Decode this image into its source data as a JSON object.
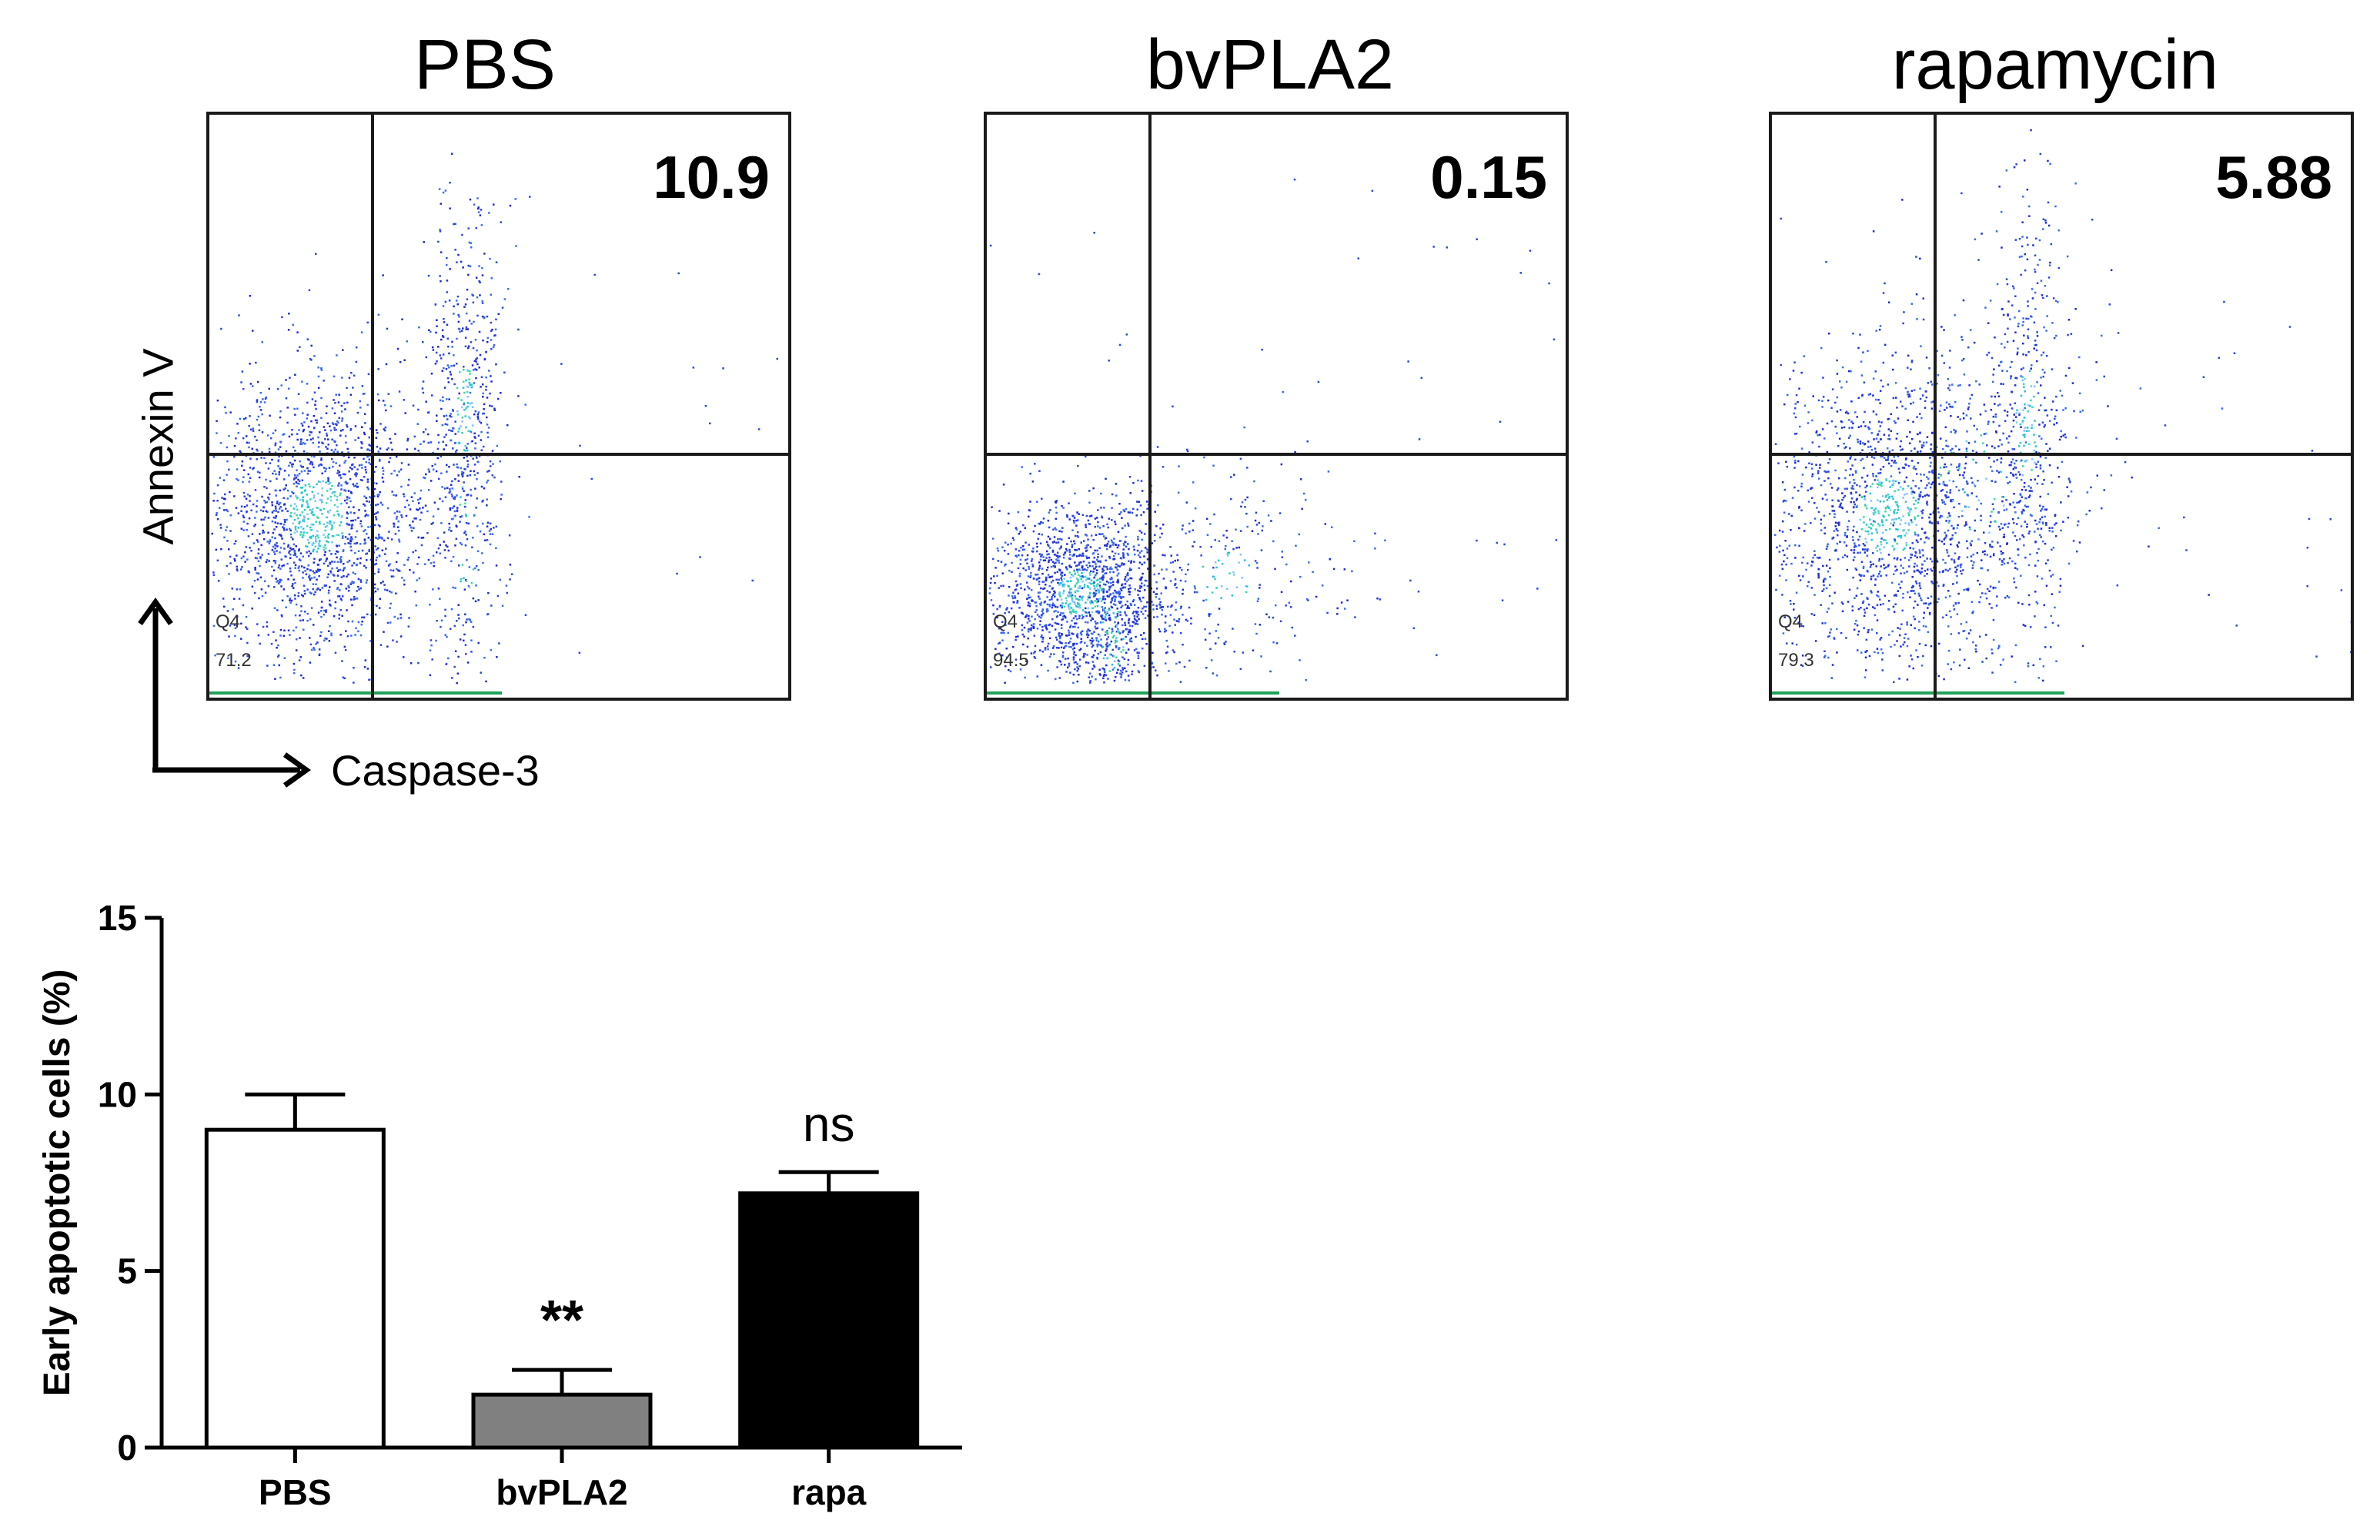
{
  "flow_panels": [
    {
      "title": "PBS",
      "upper_right_pct": "10.9",
      "q4_label": "Q4",
      "q4_value": "71.2"
    },
    {
      "title": "bvPLA2",
      "upper_right_pct": "0.15",
      "q4_label": "Q4",
      "q4_value": "94.5"
    },
    {
      "title": "rapamycin",
      "upper_right_pct": "5.88",
      "q4_label": "Q4",
      "q4_value": "79.3"
    }
  ],
  "axes_legend": {
    "y_label": "Annexin V",
    "x_label": "Caspase-3"
  },
  "chart_data": {
    "type": "bar",
    "categories": [
      "PBS",
      "bvPLA2",
      "rapa"
    ],
    "values": [
      9.0,
      1.5,
      7.2
    ],
    "errors": [
      1.0,
      0.7,
      0.6
    ],
    "bar_colors": [
      "#ffffff",
      "#808080",
      "#000000"
    ],
    "annotations": [
      "",
      "**",
      "ns"
    ],
    "ylabel": "Early apoptotic cells (%)",
    "xlabel": "",
    "ylim": [
      0,
      15
    ],
    "yticks": [
      0,
      5,
      10,
      15
    ],
    "title": ""
  }
}
